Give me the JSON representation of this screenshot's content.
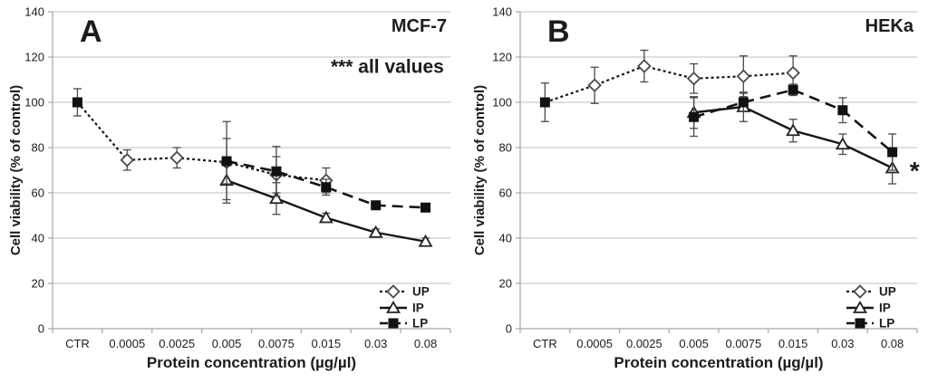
{
  "figure": {
    "background": "#ffffff",
    "text_color": "#1c1c1c",
    "gridline_color": "#bfbfbf",
    "axis_color": "#a6a6a6",
    "series_color": "#161616",
    "errorbar_color": "#4a4a4a"
  },
  "chart_data": [
    {
      "type": "line",
      "panel_label": "A",
      "title": "MCF-7",
      "xlabel": "Protein concentration (µg/µl)",
      "ylabel": "Cell viability (% of control)",
      "categories": [
        "CTR",
        "0.0005",
        "0.0025",
        "0.005",
        "0.0075",
        "0.015",
        "0.03",
        "0.08"
      ],
      "ylim": [
        0,
        140
      ],
      "yticks": [
        0,
        20,
        40,
        60,
        80,
        100,
        120,
        140
      ],
      "grid": true,
      "legend_position": "bottom-right-inside",
      "annotations": [
        {
          "text": "*** all values",
          "ax": 7.37,
          "ay": 116,
          "anchor": "end",
          "size": 21
        }
      ],
      "series": [
        {
          "name": "UP",
          "marker": "diamond",
          "line": "dotted",
          "points": [
            {
              "c": 0,
              "v": 100,
              "e": 6,
              "marker": "square"
            },
            {
              "c": 1,
              "v": 74.5,
              "e": 4.5
            },
            {
              "c": 2,
              "v": 75.5,
              "e": 4.5
            },
            {
              "c": 3,
              "v": 73.5,
              "e": 18
            },
            {
              "c": 4,
              "v": 68,
              "e": 8
            },
            {
              "c": 5,
              "v": 65.5,
              "e": 5.5
            }
          ]
        },
        {
          "name": "IP",
          "marker": "triangle",
          "line": "solid",
          "points": [
            {
              "c": 3,
              "v": 65.5,
              "e": 8.5
            },
            {
              "c": 4,
              "v": 57.5,
              "e": 7
            },
            {
              "c": 5,
              "v": 49,
              "e": 2
            },
            {
              "c": 6,
              "v": 42.5,
              "e": 1.5
            },
            {
              "c": 7,
              "v": 38.5,
              "e": 1.5
            }
          ]
        },
        {
          "name": "LP",
          "marker": "square",
          "line": "dash",
          "points": [
            {
              "c": 3,
              "v": 74,
              "e": 10
            },
            {
              "c": 4,
              "v": 69.5,
              "e": 11
            },
            {
              "c": 5,
              "v": 62.5,
              "e": 3.5
            },
            {
              "c": 6,
              "v": 54.5,
              "e": 1
            },
            {
              "c": 7,
              "v": 53.5,
              "e": 1
            }
          ]
        }
      ]
    },
    {
      "type": "line",
      "panel_label": "B",
      "title": "HEKa",
      "xlabel": "Protein concentration (µg/µl)",
      "ylabel": "Cell viability (% of control)",
      "categories": [
        "CTR",
        "0.0005",
        "0.0025",
        "0.005",
        "0.0075",
        "0.015",
        "0.03",
        "0.08"
      ],
      "ylim": [
        0,
        140
      ],
      "yticks": [
        0,
        20,
        40,
        60,
        80,
        100,
        120,
        140
      ],
      "grid": true,
      "legend_position": "bottom-right-inside",
      "annotations": [
        {
          "text": "*",
          "ax": 7.45,
          "ay": 70,
          "anchor": "middle",
          "size": 28
        }
      ],
      "series": [
        {
          "name": "UP",
          "marker": "diamond",
          "line": "dotted",
          "points": [
            {
              "c": 0,
              "v": 100,
              "e": 8.5,
              "marker": "square"
            },
            {
              "c": 1,
              "v": 107.5,
              "e": 8
            },
            {
              "c": 2,
              "v": 116,
              "e": 7
            },
            {
              "c": 3,
              "v": 110.5,
              "e": 6.5
            },
            {
              "c": 4,
              "v": 111.5,
              "e": 9
            },
            {
              "c": 5,
              "v": 113,
              "e": 7.5
            }
          ]
        },
        {
          "name": "IP",
          "marker": "triangle",
          "line": "solid",
          "points": [
            {
              "c": 3,
              "v": 95.5,
              "e": 7
            },
            {
              "c": 4,
              "v": 98,
              "e": 6.5
            },
            {
              "c": 5,
              "v": 87.5,
              "e": 5
            },
            {
              "c": 6,
              "v": 81.5,
              "e": 4.5
            },
            {
              "c": 7,
              "v": 71,
              "e": 7
            }
          ]
        },
        {
          "name": "LP",
          "marker": "square",
          "line": "dash",
          "points": [
            {
              "c": 3,
              "v": 93.5,
              "e": 8.5
            },
            {
              "c": 4,
              "v": 100,
              "e": 4
            },
            {
              "c": 5,
              "v": 105.5,
              "e": 2.5
            },
            {
              "c": 6,
              "v": 96.5,
              "e": 5.5
            },
            {
              "c": 7,
              "v": 78,
              "e": 8
            }
          ]
        }
      ]
    }
  ]
}
